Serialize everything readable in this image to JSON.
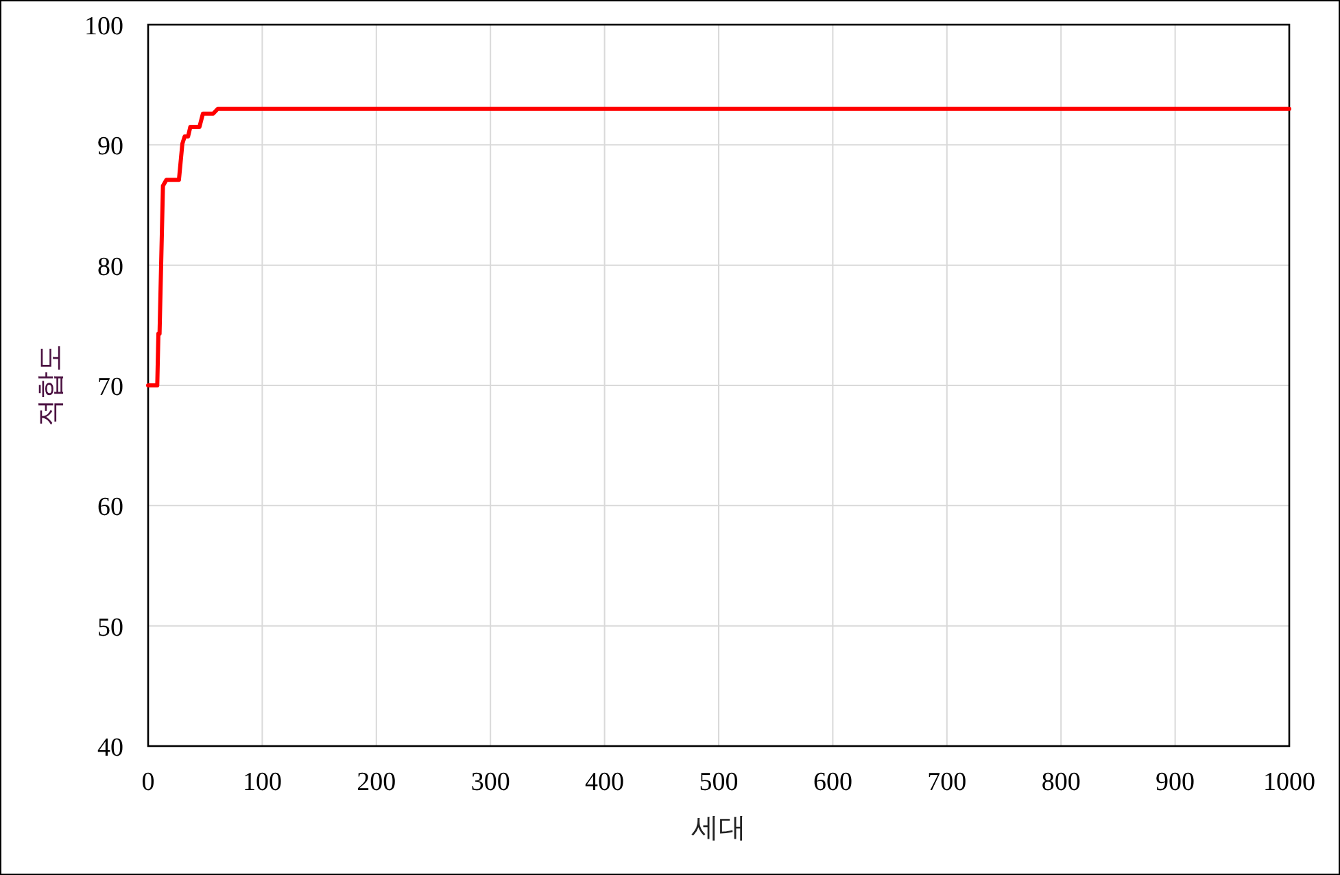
{
  "chart_data": {
    "type": "line",
    "xlabel": "세대",
    "ylabel": "적합도",
    "x": [
      0,
      8,
      9,
      10,
      13,
      16,
      27,
      30,
      32,
      35,
      37,
      45,
      48,
      57,
      61,
      1000
    ],
    "values": [
      70,
      70,
      74.3,
      74.3,
      86.6,
      87.1,
      87.1,
      90.1,
      90.7,
      90.7,
      91.5,
      91.5,
      92.6,
      92.6,
      93,
      93
    ],
    "color": "#ff0000",
    "xlim": [
      0,
      1000
    ],
    "ylim": [
      40,
      100
    ],
    "xticks": [
      0,
      100,
      200,
      300,
      400,
      500,
      600,
      700,
      800,
      900,
      1000
    ],
    "yticks": [
      40,
      50,
      60,
      70,
      80,
      90,
      100
    ],
    "grid": true
  }
}
